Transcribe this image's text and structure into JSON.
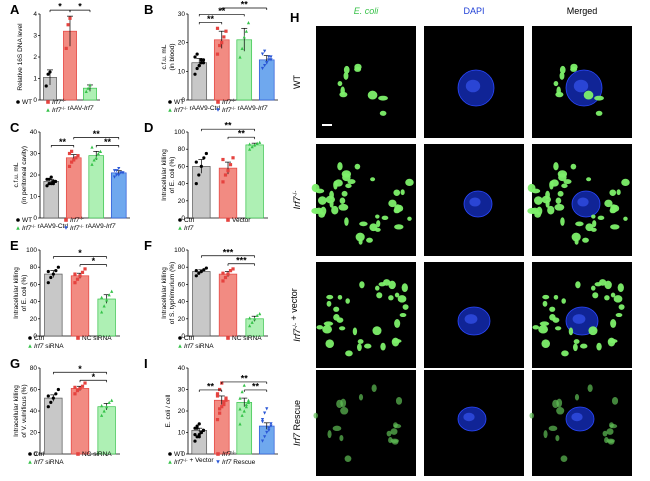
{
  "panels": [
    {
      "label": "A",
      "ylabel": "Relative 16S DNA level",
      "yticks": [
        "0",
        "1",
        "2",
        "3",
        "4"
      ],
      "ymax": 4,
      "groups": [
        {
          "value": 1.05,
          "err": 0.35,
          "points": [
            0.65,
            1.2,
            1.3
          ]
        },
        {
          "value": 3.2,
          "err": 0.7,
          "points": [
            2.4,
            3.5,
            3.8
          ]
        },
        {
          "value": 0.55,
          "err": 0.15,
          "points": [
            0.4,
            0.55,
            0.7
          ]
        }
      ],
      "sig": [
        {
          "from": 0,
          "to": 1,
          "text": "*",
          "level": 0
        },
        {
          "from": 1,
          "to": 2,
          "text": "*",
          "level": 0
        }
      ],
      "legend": [
        {
          "text": "WT",
          "marker": "circle"
        },
        {
          "text": "Irf7",
          "sup": "-/-",
          "marker": "square"
        },
        {
          "text": "Irf7",
          "sup": "-/-",
          "extra": " rAAV-",
          "italic2": "Irf7",
          "marker": "triangle"
        }
      ]
    },
    {
      "label": "B",
      "ylabel": "c.f.u. mL",
      "ylabel2": "(in blood)",
      "yticks": [
        "0",
        "10",
        "20",
        "30"
      ],
      "ymax": 30,
      "groups": [
        {
          "value": 13,
          "err": 1.5,
          "points": [
            9,
            11,
            12,
            13,
            14,
            15,
            16,
            12,
            14,
            13
          ]
        },
        {
          "value": 21,
          "err": 3,
          "points": [
            16,
            19,
            20,
            22,
            24,
            25
          ]
        },
        {
          "value": 21,
          "err": 4,
          "points": [
            15,
            18,
            22,
            24,
            27
          ]
        },
        {
          "value": 14,
          "err": 1.5,
          "points": [
            11,
            12,
            13,
            14,
            15,
            16,
            17,
            13,
            15,
            14
          ]
        }
      ],
      "sig": [
        {
          "from": 0,
          "to": 1,
          "text": "**",
          "level": 0
        },
        {
          "from": 0,
          "to": 2,
          "text": "**",
          "level": 1
        },
        {
          "from": 1,
          "to": 3,
          "text": "**",
          "level": 2
        }
      ],
      "legend": [
        {
          "text": "WT",
          "marker": "circle"
        },
        {
          "text": "Irf7",
          "sup": "-/-",
          "marker": "square"
        },
        {
          "text": "Irf7",
          "sup": "-/-",
          "extra": " rAAV9-Ctrl",
          "marker": "triangle"
        },
        {
          "text": "Irf7",
          "sup": "-/-",
          "extra": " rAAV9-",
          "italic2": "Irf7",
          "marker": "invtriangle"
        }
      ]
    },
    {
      "label": "C",
      "ylabel": "c.f.u. mL",
      "ylabel2": "(in peritoneal cavity)",
      "yticks": [
        "0",
        "10",
        "20",
        "30",
        "40"
      ],
      "ymax": 40,
      "groups": [
        {
          "value": 17,
          "err": 1,
          "points": [
            15,
            16,
            16,
            17,
            17,
            18,
            18,
            19,
            16,
            17
          ]
        },
        {
          "value": 28,
          "err": 1.5,
          "points": [
            24,
            26,
            27,
            28,
            29,
            30,
            31
          ]
        },
        {
          "value": 29,
          "err": 2,
          "points": [
            25,
            27,
            28,
            30,
            31,
            33
          ]
        },
        {
          "value": 21,
          "err": 1,
          "points": [
            19,
            20,
            20,
            21,
            21,
            22,
            22,
            23
          ]
        }
      ],
      "sig": [
        {
          "from": 0,
          "to": 1,
          "text": "**",
          "level": 0
        },
        {
          "from": 1,
          "to": 3,
          "text": "**",
          "level": 1
        },
        {
          "from": 2,
          "to": 3,
          "text": "**",
          "level": 0
        }
      ],
      "legend": [
        {
          "text": "WT",
          "marker": "circle"
        },
        {
          "text": "Irf7",
          "sup": "-/-",
          "marker": "square"
        },
        {
          "text": "Irf7",
          "sup": "-/-",
          "extra": " rAAV9-Ctrl",
          "marker": "triangle"
        },
        {
          "text": "Irf7",
          "sup": "-/-",
          "extra": " rAAV9-",
          "italic2": "Irf7",
          "marker": "invtriangle"
        }
      ]
    },
    {
      "label": "D",
      "ylabel": "Intracellular killing",
      "ylabel2": "of E. coli (%)",
      "yticks": [
        "0",
        "20",
        "40",
        "60",
        "80",
        "100"
      ],
      "ymax": 100,
      "groups": [
        {
          "value": 60,
          "err": 8,
          "points": [
            40,
            50,
            60,
            70,
            75,
            65
          ]
        },
        {
          "value": 58,
          "err": 7,
          "points": [
            42,
            50,
            55,
            62,
            70,
            68
          ]
        },
        {
          "value": 85,
          "err": 2,
          "points": [
            80,
            83,
            85,
            87,
            88,
            86
          ]
        }
      ],
      "sig": [
        {
          "from": 0,
          "to": 2,
          "text": "**",
          "level": 1
        },
        {
          "from": 1,
          "to": 2,
          "text": "**",
          "level": 0
        }
      ],
      "legend": [
        {
          "text": "Ctrl",
          "marker": "circle"
        },
        {
          "text": "Vector",
          "marker": "square"
        },
        {
          "text": "Irf7",
          "italic": true,
          "marker": "triangle"
        }
      ]
    },
    {
      "label": "E",
      "ylabel": "Intracellular killing",
      "ylabel2": "of E. coli (%)",
      "yticks": [
        "0",
        "20",
        "40",
        "60",
        "80",
        "100"
      ],
      "ymax": 100,
      "groups": [
        {
          "value": 72,
          "err": 4,
          "points": [
            62,
            68,
            72,
            76,
            80,
            75
          ]
        },
        {
          "value": 70,
          "err": 3,
          "points": [
            62,
            66,
            70,
            74,
            78,
            72
          ]
        },
        {
          "value": 43,
          "err": 5,
          "points": [
            28,
            35,
            42,
            48,
            52,
            45
          ]
        }
      ],
      "sig": [
        {
          "from": 0,
          "to": 2,
          "text": "*",
          "level": 1
        },
        {
          "from": 1,
          "to": 2,
          "text": "*",
          "level": 0
        }
      ],
      "legend": [
        {
          "text": "Ctrl",
          "marker": "circle"
        },
        {
          "text": "NC siRNA",
          "marker": "square"
        },
        {
          "text": "Irf7",
          "italic": true,
          "extra": " siRNA",
          "marker": "triangle"
        }
      ]
    },
    {
      "label": "F",
      "ylabel": "Intracellular killing",
      "ylabel2": "of S. typhimurium (%)",
      "yticks": [
        "0",
        "20",
        "40",
        "60",
        "80",
        "100"
      ],
      "ymax": 100,
      "groups": [
        {
          "value": 75,
          "err": 2,
          "points": [
            70,
            73,
            75,
            77,
            79,
            76
          ]
        },
        {
          "value": 72,
          "err": 3,
          "points": [
            64,
            68,
            72,
            76,
            78,
            73
          ]
        },
        {
          "value": 20,
          "err": 3,
          "points": [
            12,
            16,
            20,
            24,
            26,
            21
          ]
        }
      ],
      "sig": [
        {
          "from": 0,
          "to": 2,
          "text": "***",
          "level": 1
        },
        {
          "from": 1,
          "to": 2,
          "text": "***",
          "level": 0
        }
      ],
      "legend": [
        {
          "text": "Ctrl",
          "marker": "circle"
        },
        {
          "text": "NC siRNA",
          "marker": "square"
        },
        {
          "text": "Irf7",
          "italic": true,
          "extra": " siRNA",
          "marker": "triangle"
        }
      ]
    },
    {
      "label": "G",
      "ylabel": "Intracellular killing",
      "ylabel2": "of V. vulnificus (%)",
      "yticks": [
        "0",
        "20",
        "40",
        "60",
        "80"
      ],
      "ymax": 80,
      "groups": [
        {
          "value": 52,
          "err": 3,
          "points": [
            44,
            48,
            52,
            56,
            60,
            54
          ]
        },
        {
          "value": 61,
          "err": 2,
          "points": [
            56,
            59,
            61,
            63,
            66,
            62
          ]
        },
        {
          "value": 44,
          "err": 3,
          "points": [
            36,
            40,
            44,
            48,
            50,
            45
          ]
        }
      ],
      "sig": [
        {
          "from": 0,
          "to": 2,
          "text": "*",
          "level": 1
        },
        {
          "from": 1,
          "to": 2,
          "text": "*",
          "level": 0
        }
      ],
      "legend": [
        {
          "text": "Ctrl",
          "marker": "circle"
        },
        {
          "text": "NC siRNA",
          "marker": "square"
        },
        {
          "text": "Irf7",
          "italic": true,
          "extra": " siRNA",
          "marker": "triangle"
        }
      ]
    },
    {
      "label": "I",
      "ylabel": "E. coli / cell",
      "yticks": [
        "0",
        "10",
        "20",
        "30",
        "40"
      ],
      "ymax": 40,
      "groups": [
        {
          "value": 11,
          "err": 1,
          "points": [
            6,
            8,
            9,
            10,
            11,
            12,
            13,
            14,
            10,
            11,
            9,
            12,
            8
          ]
        },
        {
          "value": 25,
          "err": 2,
          "points": [
            16,
            19,
            22,
            24,
            26,
            28,
            30,
            33,
            23,
            25,
            27,
            21
          ]
        },
        {
          "value": 24,
          "err": 2,
          "points": [
            14,
            18,
            20,
            22,
            24,
            26,
            29,
            32,
            23,
            25,
            21
          ]
        },
        {
          "value": 13,
          "err": 1.5,
          "points": [
            6,
            8,
            10,
            12,
            14,
            16,
            19,
            21,
            11,
            13,
            15
          ]
        }
      ],
      "sig": [
        {
          "from": 0,
          "to": 1,
          "text": "**",
          "level": 0
        },
        {
          "from": 1,
          "to": 3,
          "text": "**",
          "level": 1
        },
        {
          "from": 2,
          "to": 3,
          "text": "**",
          "level": 0
        }
      ],
      "legend": [
        {
          "text": "WT",
          "marker": "circle"
        },
        {
          "text": "Irf7",
          "sup": "-/-",
          "marker": "square"
        },
        {
          "text": "Irf7",
          "sup": "-/-",
          "extra": " + Vector",
          "marker": "triangle"
        },
        {
          "text": "Irf7",
          "italic": true,
          "extra": " Rescue",
          "marker": "invtriangle"
        }
      ]
    }
  ],
  "micro": {
    "label": "H",
    "columns": [
      {
        "text": "E. coli",
        "color": "#39c24a"
      },
      {
        "text": "DAPI",
        "color": "#1f3fd6"
      },
      {
        "text": "Merged",
        "color": "#000000"
      }
    ],
    "rows": [
      {
        "text": "WT"
      },
      {
        "text": "Irf7",
        "sup": "-/-"
      },
      {
        "text": "Irf7",
        "sup": "-/-",
        "extra": " + vector"
      },
      {
        "text": "Irf7",
        "extra": " Rescue"
      }
    ]
  },
  "colors": {
    "gray": "#c8c8c8",
    "red": "#f28b82",
    "green": "#aef0b4",
    "blue": "#6fa8ee",
    "grayPt": "#000000",
    "redPt": "#e5433f",
    "greenPt": "#36c24a",
    "bluePt": "#2a57d6"
  }
}
